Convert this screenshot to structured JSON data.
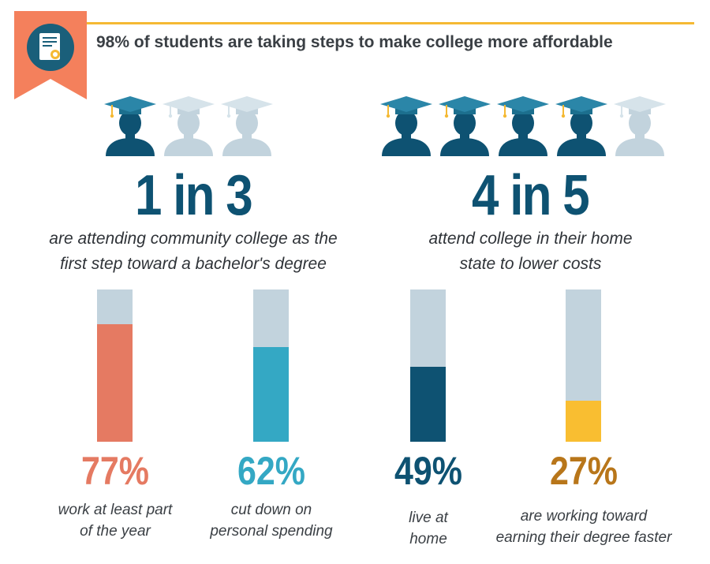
{
  "header": {
    "title": "98% of students are taking steps to make college more affordable",
    "accent_color": "#F5B933",
    "ribbon_color": "#F4805C",
    "badge_color": "#1A5F7A",
    "icon": "diploma-icon"
  },
  "stats": [
    {
      "big_text": "1 in 3",
      "caption_lines": [
        "are attending community college as the",
        "first step toward a bachelor's degree"
      ],
      "filled": 1,
      "total": 3,
      "icon": "graduate-icon"
    },
    {
      "big_text": "4 in 5",
      "caption_lines": [
        "attend college in their home",
        "state to lower costs"
      ],
      "filled": 4,
      "total": 5,
      "icon": "graduate-icon"
    }
  ],
  "colors": {
    "dark_blue": "#0E5272",
    "light_blue": "#C2D3DD",
    "cap_teal": "#1C6F8E",
    "tassel": "#F5B933"
  },
  "chart_data": {
    "type": "bar",
    "categories": [
      "work at least part of the year",
      "cut down on personal spending",
      "live at home",
      "are working toward earning their degree faster"
    ],
    "values": [
      77,
      62,
      49,
      27
    ],
    "labels": [
      "77%",
      "62%",
      "49%",
      "27%"
    ],
    "captions": [
      [
        "work at least part",
        "of the year"
      ],
      [
        "cut down on",
        "personal spending"
      ],
      [
        "live at",
        "home"
      ],
      [
        "are working toward",
        "earning their degree faster"
      ]
    ],
    "colors": [
      "#E57A62",
      "#34A8C4",
      "#0E5272",
      "#F9BE31"
    ],
    "label_colors": [
      "#E57A62",
      "#34A8C4",
      "#0E5272",
      "#B8761A"
    ],
    "track_color": "#C2D3DD",
    "ylim": [
      0,
      100
    ],
    "title": "",
    "xlabel": "",
    "ylabel": ""
  }
}
